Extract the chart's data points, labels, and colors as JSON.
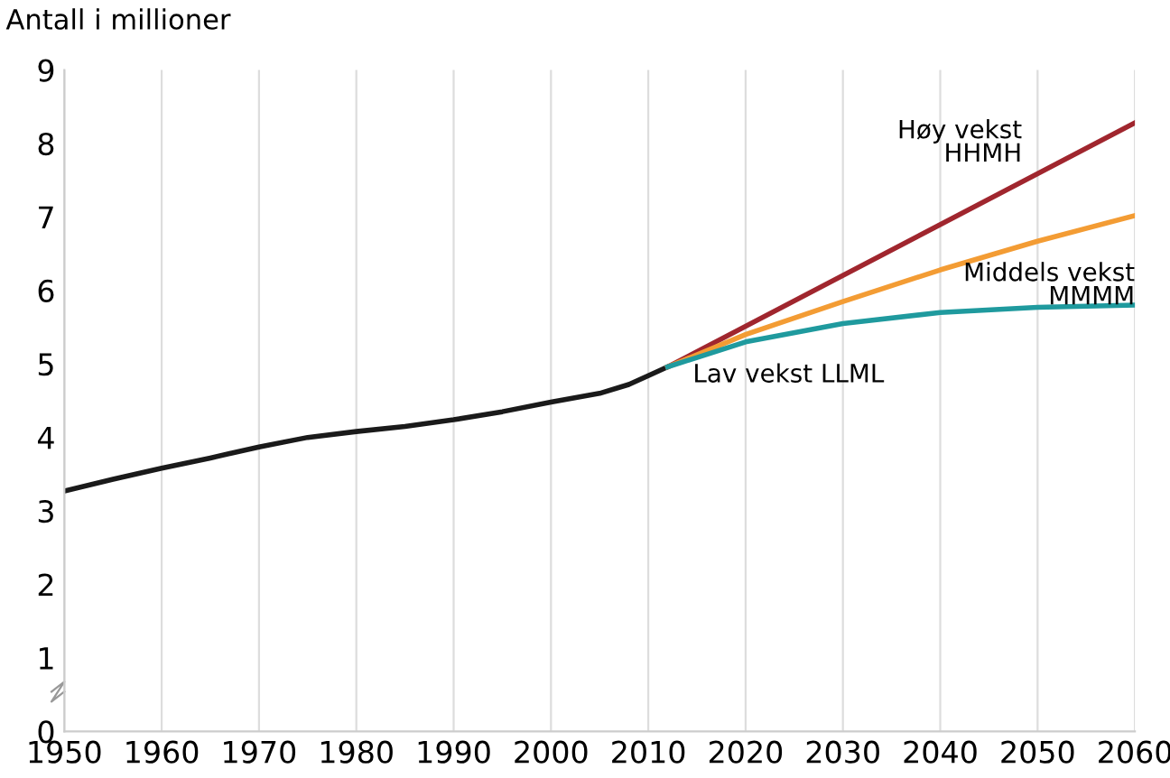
{
  "chart_data": {
    "type": "line",
    "ylabel": "Antall i millioner",
    "grid": "x",
    "line_style": "solid",
    "xlim": [
      1950,
      2060
    ],
    "xticks": [
      1950,
      1960,
      1970,
      1980,
      1990,
      2000,
      2010,
      2020,
      2030,
      2040,
      2050,
      2060
    ],
    "ylim": [
      0,
      9
    ],
    "yticks": [
      0,
      1,
      2,
      3,
      4,
      5,
      6,
      7,
      8,
      9
    ],
    "series": [
      {
        "color": "#1a1a1a",
        "x": [
          1950,
          1955,
          1960,
          1965,
          1970,
          1975,
          1980,
          1985,
          1990,
          1995,
          2000,
          2005,
          2008,
          2010,
          2012
        ],
        "values": [
          3.27,
          3.43,
          3.58,
          3.72,
          3.87,
          4.0,
          4.08,
          4.15,
          4.24,
          4.35,
          4.48,
          4.6,
          4.72,
          4.84,
          4.96
        ]
      },
      {
        "name": "Høy vekst\nHHMH",
        "color": "#a0262e",
        "x": [
          2012,
          2060
        ],
        "values": [
          4.96,
          8.28
        ]
      },
      {
        "name": "Middels vekst\nMMMM",
        "color": "#f39c34",
        "x": [
          2012,
          2020,
          2030,
          2040,
          2050,
          2060
        ],
        "values": [
          4.96,
          5.4,
          5.85,
          6.28,
          6.67,
          7.02
        ]
      },
      {
        "name": "Lav vekst LLML",
        "color": "#1f9a9e",
        "x": [
          2012,
          2020,
          2030,
          2040,
          2050,
          2060
        ],
        "values": [
          4.96,
          5.3,
          5.55,
          5.7,
          5.77,
          5.8
        ]
      }
    ]
  }
}
